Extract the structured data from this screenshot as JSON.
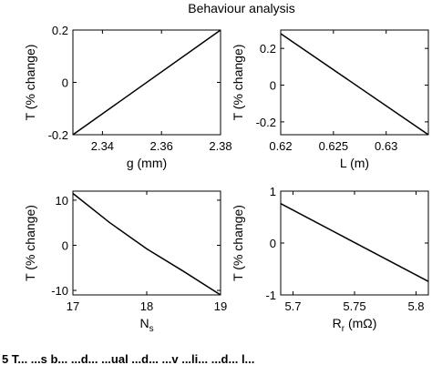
{
  "title": "Behaviour analysis",
  "caption_fragment": "5  T... ...s b... ...d... ...ual ...d... ...v ...li... ...d... l...",
  "chart_data": [
    {
      "type": "line",
      "xlabel": "g (mm)",
      "ylabel": "T (% change)",
      "xlim": [
        2.33,
        2.38
      ],
      "ylim": [
        -0.2,
        0.2
      ],
      "xticks": [
        "2.34",
        "2.36",
        "2.38"
      ],
      "yticks": [
        "0.2",
        "0",
        "-0.2"
      ],
      "x": [
        2.33,
        2.38
      ],
      "y": [
        -0.2,
        0.2
      ]
    },
    {
      "type": "line",
      "xlabel": "L (m)",
      "ylabel": "T (% change)",
      "xlim": [
        0.62,
        0.634
      ],
      "ylim": [
        -0.27,
        0.3
      ],
      "xticks": [
        "0.62",
        "0.625",
        "0.63"
      ],
      "yticks": [
        "0.2",
        "0",
        "-0.2"
      ],
      "x": [
        0.62,
        0.634
      ],
      "y": [
        0.28,
        -0.27
      ]
    },
    {
      "type": "line",
      "xlabel_main": "N",
      "xlabel_sub": "s",
      "ylabel": "T (% change)",
      "xlim": [
        17,
        19
      ],
      "ylim": [
        -11,
        12
      ],
      "xticks": [
        "17",
        "18",
        "19"
      ],
      "yticks": [
        "10",
        "0",
        "-10"
      ],
      "x": [
        17,
        17.5,
        18,
        18.5,
        19
      ],
      "y": [
        11.5,
        5,
        -0.8,
        -5.8,
        -11
      ]
    },
    {
      "type": "line",
      "xlabel_main": "R",
      "xlabel_sub": "r",
      "xlabel_unit": " (mΩ)",
      "ylabel": "T (% change)",
      "xlim": [
        5.69,
        5.81
      ],
      "ylim": [
        -1,
        1
      ],
      "xticks": [
        "5.7",
        "5.75",
        "5.8"
      ],
      "yticks": [
        "1",
        "0",
        "-1"
      ],
      "x": [
        5.69,
        5.81
      ],
      "y": [
        0.76,
        -0.74
      ]
    }
  ]
}
